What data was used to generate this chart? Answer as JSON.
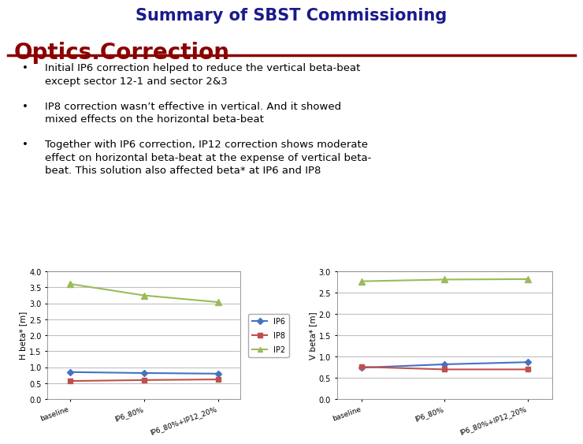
{
  "title": "Summary of SBST Commissioning",
  "title_color": "#1a1a8c",
  "section_label": "Optics.Correction",
  "section_color": "#8b0000",
  "line_color": "#8b0000",
  "bullet_points": [
    "Initial IP6 correction helped to reduce the vertical beta-beat\nexcept sector 12-1 and sector 2&3",
    "IP8 correction wasn’t effective in vertical. And it showed\nmixed effects on the horizontal beta-beat",
    "Together with IP6 correction, IP12 correction shows moderate\neffect on horizontal beta-beat at the expense of vertical beta-\nbeat. This solution also affected beta* at IP6 and IP8"
  ],
  "x_labels": [
    "baseline",
    "IP6_80%",
    "IP6_80%+IP12_20%"
  ],
  "left_plot": {
    "ylabel": "H beta* [m]",
    "ylim": [
      0,
      4
    ],
    "yticks": [
      0,
      0.5,
      1,
      1.5,
      2,
      2.5,
      3,
      3.5,
      4
    ],
    "ip6": [
      0.85,
      0.82,
      0.8
    ],
    "ip8": [
      0.57,
      0.6,
      0.62
    ],
    "ip2": [
      3.61,
      3.25,
      3.04
    ]
  },
  "right_plot": {
    "ylabel": "V beta* [m]",
    "ylim": [
      0,
      3
    ],
    "yticks": [
      0,
      0.5,
      1,
      1.5,
      2,
      2.5,
      3
    ],
    "ip6": [
      0.74,
      0.82,
      0.87
    ],
    "ip8": [
      0.76,
      0.7,
      0.7
    ],
    "ip2": [
      2.77,
      2.81,
      2.82
    ]
  },
  "ip6_color": "#4472c4",
  "ip8_color": "#c0504d",
  "ip2_color": "#9bbb59",
  "background_color": "#ffffff",
  "grid_color": "#c0c0c0",
  "text_color": "#000000",
  "bullet_fontsize": 9.5,
  "title_fontsize": 15,
  "section_fontsize": 20
}
